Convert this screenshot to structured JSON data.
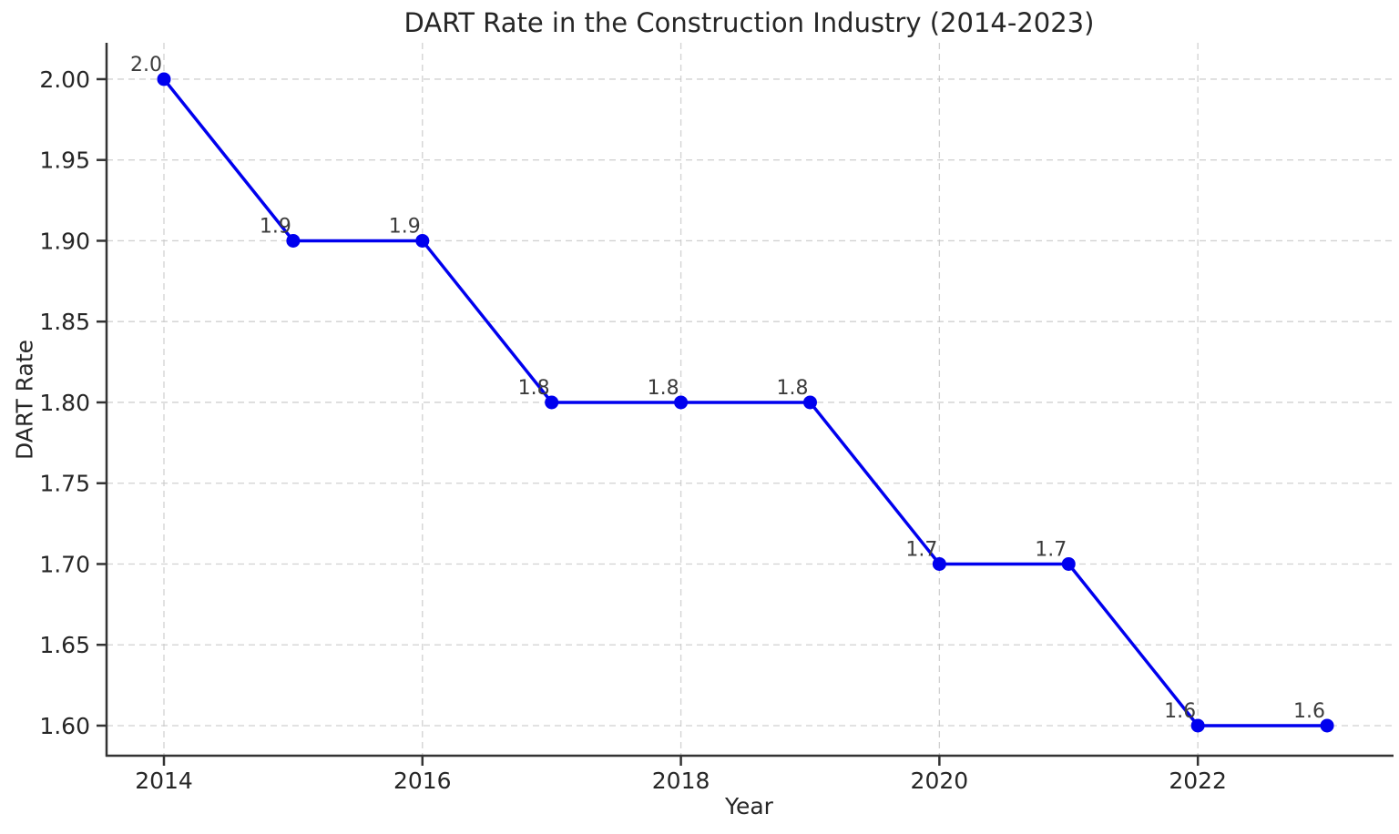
{
  "figure": {
    "background": "#ffffff"
  },
  "chart_data": {
    "type": "line",
    "title": "DART Rate in the Construction Industry (2014-2023)",
    "xlabel": "Year",
    "ylabel": "DART Rate",
    "x": [
      2014,
      2015,
      2016,
      2017,
      2018,
      2019,
      2020,
      2021,
      2022,
      2023
    ],
    "values": [
      2.0,
      1.9,
      1.9,
      1.8,
      1.8,
      1.8,
      1.7,
      1.7,
      1.6,
      1.6
    ],
    "point_labels": [
      "2.0",
      "1.9",
      "1.9",
      "1.8",
      "1.8",
      "1.8",
      "1.7",
      "1.7",
      "1.6",
      "1.6"
    ],
    "xticks": [
      2014,
      2016,
      2018,
      2020,
      2022
    ],
    "xtick_labels": [
      "2014",
      "2016",
      "2018",
      "2020",
      "2022"
    ],
    "yticks": [
      1.6,
      1.65,
      1.7,
      1.75,
      1.8,
      1.85,
      1.9,
      1.95,
      2.0
    ],
    "ytick_labels": [
      "1.60",
      "1.65",
      "1.70",
      "1.75",
      "1.80",
      "1.85",
      "1.90",
      "1.95",
      "2.00"
    ],
    "xlim": [
      2013.556,
      2023.5
    ],
    "ylim": [
      1.5814,
      2.0225
    ],
    "grid": true,
    "grid_style": "dashed",
    "legend": "none",
    "line_color": "#0000ee",
    "marker": "circle",
    "marker_color": "#0000ee",
    "grid_color": "#c9c9c9",
    "spine_color": "#333333",
    "tick_text_color": "#262626",
    "annotation_color": "#3c3c3c"
  }
}
